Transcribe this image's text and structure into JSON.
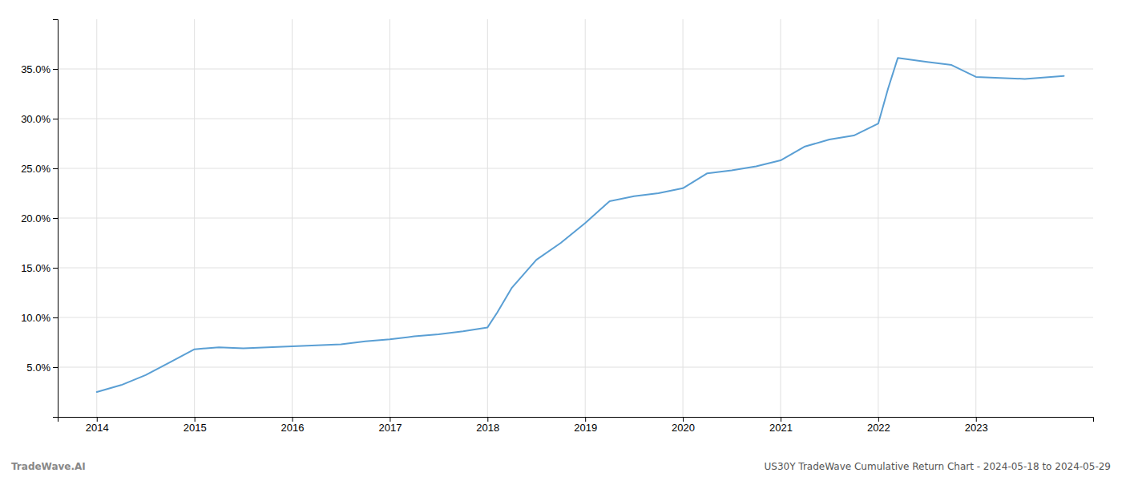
{
  "chart_data": {
    "type": "line",
    "x": [
      2014.0,
      2014.25,
      2014.5,
      2014.75,
      2015.0,
      2015.25,
      2015.5,
      2015.75,
      2016.0,
      2016.25,
      2016.5,
      2016.75,
      2017.0,
      2017.25,
      2017.5,
      2017.75,
      2018.0,
      2018.1,
      2018.25,
      2018.5,
      2018.75,
      2019.0,
      2019.25,
      2019.5,
      2019.75,
      2020.0,
      2020.25,
      2020.5,
      2020.75,
      2021.0,
      2021.25,
      2021.5,
      2021.75,
      2022.0,
      2022.1,
      2022.2,
      2022.5,
      2022.75,
      2023.0,
      2023.5,
      2023.9
    ],
    "values": [
      2.5,
      3.2,
      4.2,
      5.5,
      6.8,
      7.0,
      6.9,
      7.0,
      7.1,
      7.2,
      7.3,
      7.6,
      7.8,
      8.1,
      8.3,
      8.6,
      9.0,
      10.5,
      13.0,
      15.8,
      17.5,
      19.5,
      21.7,
      22.2,
      22.5,
      23.0,
      24.5,
      24.8,
      25.2,
      25.8,
      27.2,
      27.9,
      28.3,
      29.5,
      33.0,
      36.1,
      35.7,
      35.4,
      34.2,
      34.0,
      34.3
    ],
    "color": "#5a9fd4",
    "xlim": [
      2013.6,
      2024.2
    ],
    "ylim": [
      0,
      40
    ],
    "xticks": [
      2014,
      2015,
      2016,
      2017,
      2018,
      2019,
      2020,
      2021,
      2022,
      2023
    ],
    "yticks": [
      {
        "value": 5.0,
        "label": "5.0%"
      },
      {
        "value": 10.0,
        "label": "10.0%"
      },
      {
        "value": 15.0,
        "label": "15.0%"
      },
      {
        "value": 20.0,
        "label": "20.0%"
      },
      {
        "value": 25.0,
        "label": "25.0%"
      },
      {
        "value": 30.0,
        "label": "30.0%"
      },
      {
        "value": 35.0,
        "label": "35.0%"
      }
    ],
    "grid": true,
    "annotations": [
      "TradeWave.AI",
      "US30Y TradeWave Cumulative Return Chart - 2024-05-18 to 2024-05-29"
    ]
  }
}
